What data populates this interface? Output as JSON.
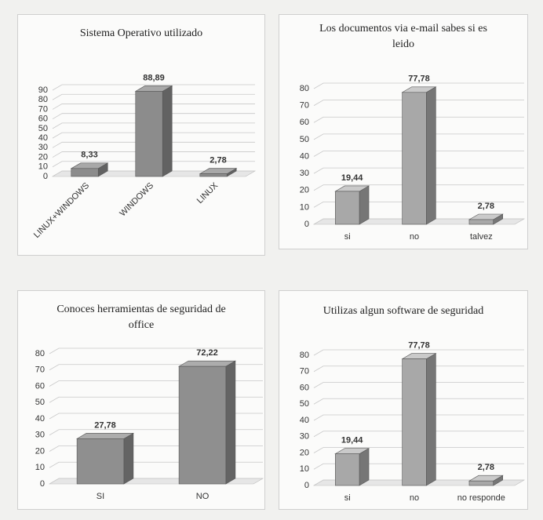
{
  "chart_data": [
    {
      "type": "bar",
      "title": "Sistema Operativo utilizado",
      "categories": [
        "LINUX+WINDOWS",
        "WINDOWS",
        "LINUX"
      ],
      "values": [
        8.33,
        88.89,
        2.78
      ],
      "value_labels": [
        "8,33",
        "88,89",
        "2,78"
      ],
      "color": "#8c8c8c",
      "ylim": [
        0,
        90
      ],
      "yticks": [
        0,
        10,
        20,
        30,
        40,
        50,
        60,
        70,
        80,
        90
      ],
      "grid": true
    },
    {
      "type": "bar",
      "title": "Los documentos via e-mail sabes si es leido",
      "categories": [
        "si",
        "no",
        "talvez"
      ],
      "values": [
        19.44,
        77.78,
        2.78
      ],
      "value_labels": [
        "19,44",
        "77,78",
        "2,78"
      ],
      "color": "#a8a8a8",
      "ylim": [
        0,
        80
      ],
      "yticks": [
        0,
        10,
        20,
        30,
        40,
        50,
        60,
        70,
        80
      ],
      "grid": true
    },
    {
      "type": "bar",
      "title": "Conoces herramientas de seguridad de office",
      "categories": [
        "SI",
        "NO"
      ],
      "values": [
        27.78,
        72.22
      ],
      "value_labels": [
        "27,78",
        "72,22"
      ],
      "color": "#8f8f8f",
      "ylim": [
        0,
        80
      ],
      "yticks": [
        0,
        10,
        20,
        30,
        40,
        50,
        60,
        70,
        80
      ],
      "grid": true
    },
    {
      "type": "bar",
      "title": "Utilizas algun software de seguridad",
      "categories": [
        "si",
        "no",
        "no responde"
      ],
      "values": [
        19.44,
        77.78,
        2.78
      ],
      "value_labels": [
        "19,44",
        "77,78",
        "2,78"
      ],
      "color": "#a8a8a8",
      "ylim": [
        0,
        80
      ],
      "yticks": [
        0,
        10,
        20,
        30,
        40,
        50,
        60,
        70,
        80
      ],
      "grid": true
    }
  ]
}
